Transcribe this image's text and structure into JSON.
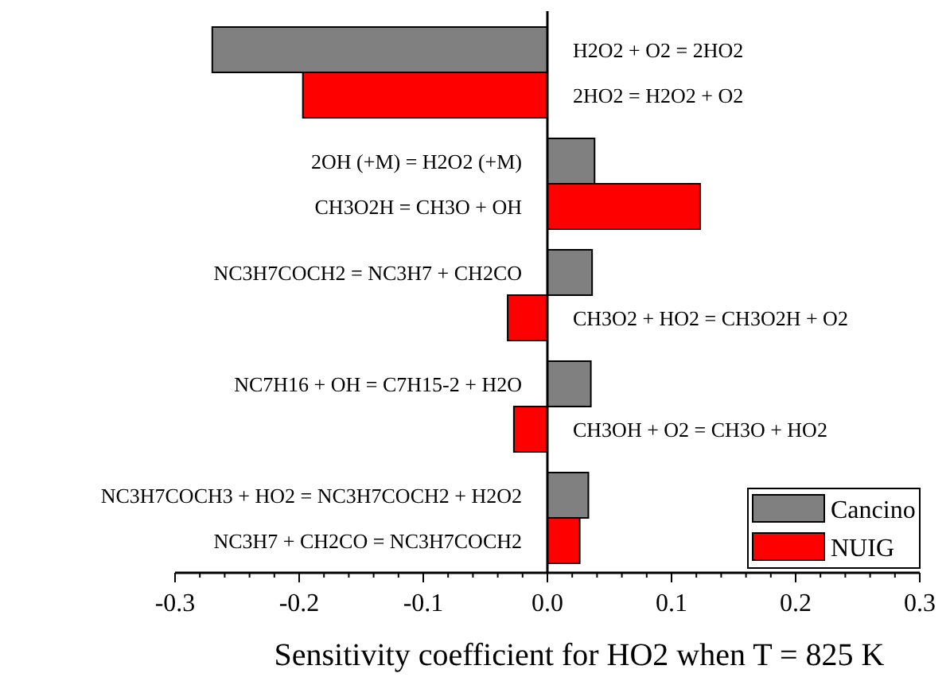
{
  "chart_data": {
    "type": "bar",
    "orientation": "horizontal",
    "xlabel": "Sensitivity coefficient for HO2 when T = 825 K",
    "categories": [
      "H2O2 + O2 = 2HO2",
      "2HO2 = H2O2 + O2",
      "2OH (+M) = H2O2 (+M)",
      "CH3O2H = CH3O + OH",
      "NC3H7COCH2 = NC3H7 + CH2CO",
      "CH3O2 + HO2 = CH3O2H + O2",
      "NC7H16 + OH = C7H15-2 + H2O",
      "CH3OH + O2 = CH3O + HO2",
      "NC3H7COCH3 + HO2 = NC3H7COCH2 + H2O2",
      "NC3H7 + CH2CO = NC3H7COCH2"
    ],
    "series": [
      {
        "name": "Cancino",
        "color": "#808080",
        "values": [
          -0.27,
          null,
          0.038,
          null,
          0.036,
          null,
          0.035,
          null,
          0.033,
          null
        ]
      },
      {
        "name": "NUIG",
        "color": "#ff0000",
        "values": [
          null,
          -0.197,
          null,
          0.123,
          null,
          -0.032,
          null,
          -0.027,
          null,
          0.026
        ]
      }
    ],
    "xlim": [
      -0.3,
      0.3
    ],
    "xticks": [
      -0.3,
      {
        "value": -0.28,
        "label": null
      },
      {
        "value": -0.26,
        "label": null
      },
      {
        "value": -0.24,
        "label": null
      },
      {
        "value": -0.22,
        "label": null
      },
      -0.2,
      {
        "value": -0.18,
        "label": null
      },
      {
        "value": -0.16,
        "label": null
      },
      {
        "value": -0.14,
        "label": null
      },
      {
        "value": -0.12,
        "label": null
      },
      -0.1,
      {
        "value": -0.08,
        "label": null
      },
      {
        "value": -0.06,
        "label": null
      },
      {
        "value": -0.04,
        "label": null
      },
      {
        "value": -0.02,
        "label": null
      },
      {
        "value": 0,
        "label": "0.0"
      },
      {
        "value": 0.02,
        "label": null
      },
      {
        "value": 0.04,
        "label": null
      },
      {
        "value": 0.06,
        "label": null
      },
      {
        "value": 0.08,
        "label": null
      },
      0.1,
      {
        "value": 0.12,
        "label": null
      },
      {
        "value": 0.14,
        "label": null
      },
      {
        "value": 0.16,
        "label": null
      },
      {
        "value": 0.18,
        "label": null
      },
      0.2,
      {
        "value": 0.22,
        "label": null
      },
      {
        "value": 0.24,
        "label": null
      },
      {
        "value": 0.26,
        "label": null
      },
      {
        "value": 0.28,
        "label": null
      },
      0.3
    ],
    "legend": "bottom right"
  }
}
